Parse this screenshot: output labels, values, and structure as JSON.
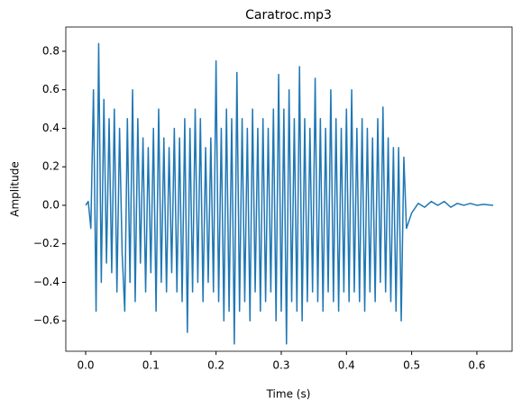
{
  "chart_data": {
    "type": "line",
    "title": "Caratroc.mp3",
    "x_label": "Time (s)",
    "y_label": "Amplitude",
    "color": "#1f77b4",
    "x": [
      0,
      0.004,
      0.008,
      0.012,
      0.016,
      0.02,
      0.024,
      0.028,
      0.032,
      0.036,
      0.04,
      0.044,
      0.048,
      0.052,
      0.056,
      0.06,
      0.064,
      0.068,
      0.072,
      0.076,
      0.08,
      0.084,
      0.088,
      0.092,
      0.096,
      0.1,
      0.104,
      0.108,
      0.112,
      0.116,
      0.12,
      0.124,
      0.128,
      0.132,
      0.136,
      0.14,
      0.144,
      0.148,
      0.152,
      0.156,
      0.16,
      0.164,
      0.168,
      0.172,
      0.176,
      0.18,
      0.184,
      0.188,
      0.192,
      0.196,
      0.2,
      0.204,
      0.208,
      0.212,
      0.216,
      0.22,
      0.224,
      0.228,
      0.232,
      0.236,
      0.24,
      0.244,
      0.248,
      0.252,
      0.256,
      0.26,
      0.264,
      0.268,
      0.272,
      0.276,
      0.28,
      0.284,
      0.288,
      0.292,
      0.296,
      0.3,
      0.304,
      0.308,
      0.312,
      0.316,
      0.32,
      0.324,
      0.328,
      0.332,
      0.336,
      0.34,
      0.344,
      0.348,
      0.352,
      0.356,
      0.36,
      0.364,
      0.368,
      0.372,
      0.376,
      0.38,
      0.384,
      0.388,
      0.392,
      0.396,
      0.4,
      0.404,
      0.408,
      0.412,
      0.416,
      0.42,
      0.424,
      0.428,
      0.432,
      0.436,
      0.44,
      0.444,
      0.448,
      0.452,
      0.456,
      0.46,
      0.464,
      0.468,
      0.472,
      0.476,
      0.48,
      0.484,
      0.488,
      0.492,
      0.496,
      0.5,
      0.51,
      0.52,
      0.53,
      0.54,
      0.55,
      0.56,
      0.57,
      0.58,
      0.59,
      0.6,
      0.61,
      0.625
    ],
    "values": [
      0,
      0.02,
      -0.12,
      0.6,
      -0.55,
      0.84,
      -0.4,
      0.55,
      -0.3,
      0.45,
      -0.35,
      0.5,
      -0.45,
      0.4,
      -0.25,
      -0.55,
      0.45,
      -0.4,
      0.6,
      -0.5,
      0.45,
      -0.3,
      0.35,
      -0.45,
      0.3,
      -0.35,
      0.4,
      -0.55,
      0.5,
      -0.4,
      0.35,
      -0.45,
      0.3,
      -0.35,
      0.4,
      -0.45,
      0.35,
      -0.5,
      0.45,
      -0.66,
      0.4,
      -0.45,
      0.5,
      -0.4,
      0.45,
      -0.5,
      0.3,
      -0.4,
      0.35,
      -0.45,
      0.75,
      -0.5,
      0.4,
      -0.6,
      0.5,
      -0.55,
      0.45,
      -0.72,
      0.69,
      -0.55,
      0.45,
      -0.5,
      0.4,
      -0.6,
      0.5,
      -0.45,
      0.4,
      -0.55,
      0.45,
      -0.5,
      0.4,
      -0.45,
      0.5,
      -0.6,
      0.68,
      -0.55,
      0.5,
      -0.72,
      0.6,
      -0.5,
      0.45,
      -0.55,
      0.72,
      -0.6,
      0.45,
      -0.5,
      0.4,
      -0.45,
      0.66,
      -0.5,
      0.45,
      -0.55,
      0.4,
      -0.45,
      0.6,
      -0.5,
      0.45,
      -0.55,
      0.4,
      -0.45,
      0.5,
      -0.5,
      0.6,
      -0.45,
      0.4,
      -0.5,
      0.45,
      -0.55,
      0.4,
      -0.45,
      0.35,
      -0.5,
      0.45,
      -0.4,
      0.51,
      -0.45,
      0.35,
      -0.5,
      0.3,
      -0.55,
      0.3,
      -0.6,
      0.25,
      -0.12,
      -0.08,
      -0.04,
      0.01,
      -0.01,
      0.02,
      0,
      0.02,
      -0.01,
      0.01,
      0,
      0.01,
      0,
      0.005,
      0
    ],
    "xlim": [
      -0.0304,
      0.654
    ],
    "ylim": [
      -0.758,
      0.926
    ],
    "xticks": [
      {
        "value": 0,
        "label": "0.0"
      },
      0.1,
      0.2,
      0.3,
      0.4,
      0.5,
      0.6
    ],
    "yticks": [
      {
        "value": -0.6,
        "label": "−0.6"
      },
      {
        "value": -0.4,
        "label": "−0.4"
      },
      {
        "value": -0.2,
        "label": "−0.2"
      },
      {
        "value": 0,
        "label": "0.0"
      },
      0.2,
      0.4,
      0.6,
      0.8
    ]
  }
}
